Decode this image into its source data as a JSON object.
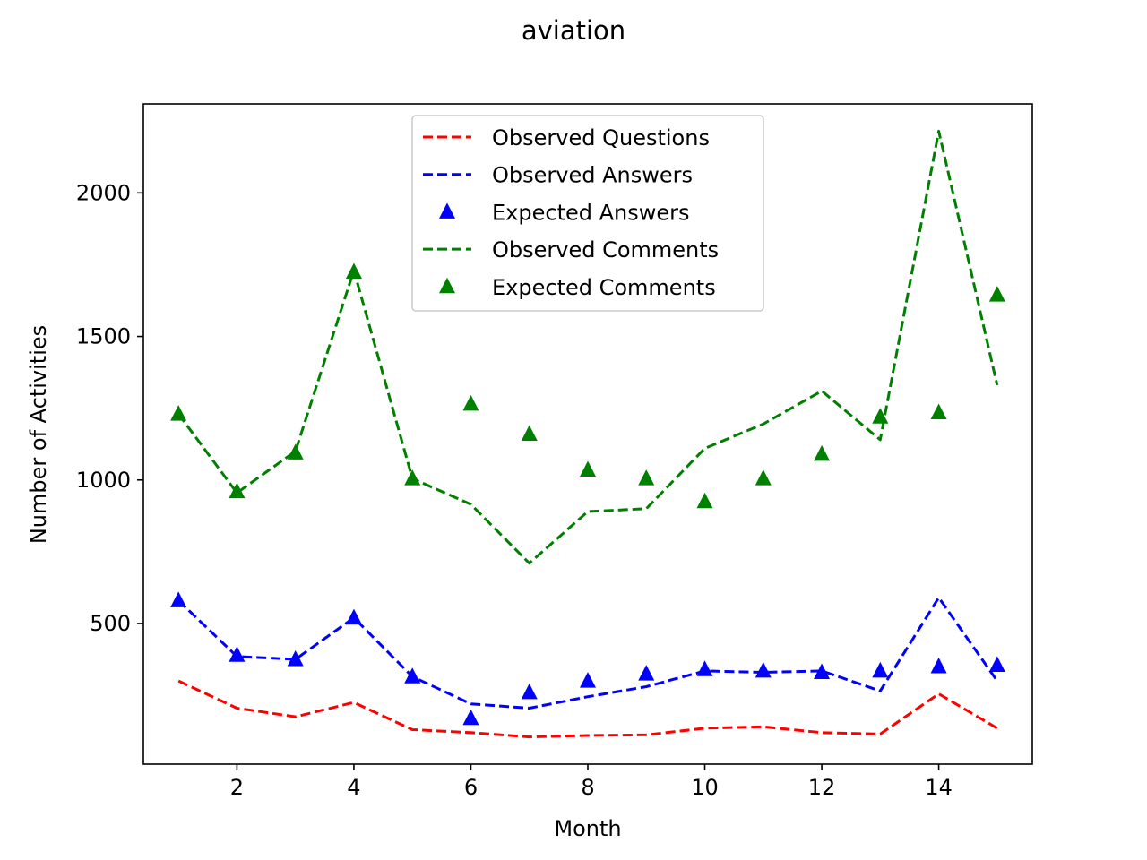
{
  "chart_data": {
    "type": "line",
    "title": "aviation",
    "xlabel": "Month",
    "ylabel": "Number of Activities",
    "xlim": [
      0.4,
      15.6
    ],
    "ylim": [
      10,
      2310
    ],
    "xticks": [
      2,
      4,
      6,
      8,
      10,
      12,
      14
    ],
    "yticks": [
      500,
      1000,
      1500,
      2000
    ],
    "grid": false,
    "legend_position": "upper center",
    "x": [
      1,
      2,
      3,
      4,
      5,
      6,
      7,
      8,
      9,
      10,
      11,
      12,
      13,
      14,
      15
    ],
    "series": [
      {
        "name": "Observed Questions",
        "kind": "dashed-line",
        "color": "#ff0000",
        "values": [
          300,
          205,
          175,
          225,
          130,
          120,
          105,
          110,
          112,
          135,
          140,
          120,
          115,
          255,
          135
        ]
      },
      {
        "name": "Observed Answers",
        "kind": "dashed-line",
        "color": "#0000ff",
        "values": [
          580,
          385,
          375,
          520,
          315,
          220,
          205,
          245,
          280,
          335,
          330,
          335,
          265,
          590,
          300
        ]
      },
      {
        "name": "Expected Answers",
        "kind": "triangle-markers",
        "color": "#0000ff",
        "values": [
          580,
          390,
          375,
          520,
          315,
          170,
          260,
          300,
          325,
          340,
          335,
          330,
          335,
          350,
          355
        ]
      },
      {
        "name": "Observed Comments",
        "kind": "dashed-line",
        "color": "#008000",
        "values": [
          1230,
          955,
          1100,
          1730,
          1005,
          915,
          710,
          890,
          900,
          1110,
          1195,
          1310,
          1140,
          2215,
          1330
        ]
      },
      {
        "name": "Expected Comments",
        "kind": "triangle-markers",
        "color": "#008000",
        "values": [
          1230,
          960,
          1095,
          1725,
          1005,
          1265,
          1160,
          1035,
          1005,
          925,
          1005,
          1090,
          1220,
          1235,
          1645
        ]
      }
    ]
  }
}
